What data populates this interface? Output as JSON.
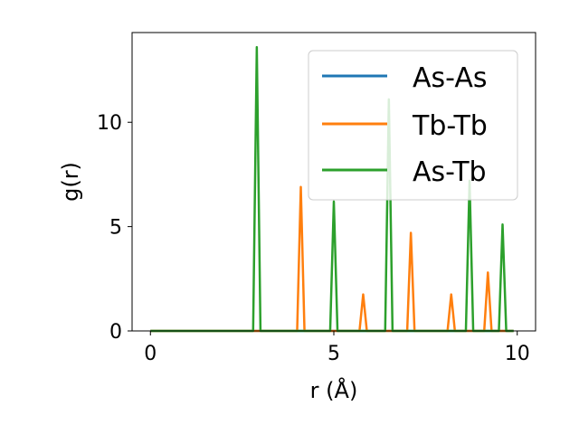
{
  "chart_data": {
    "type": "line",
    "xlabel": "r (Å)",
    "ylabel": "g(r)",
    "xlim": [
      -0.5,
      10.5
    ],
    "ylim": [
      0,
      14.3
    ],
    "x_ticks": [
      0,
      5,
      10
    ],
    "y_ticks": [
      0,
      5,
      10
    ],
    "x_tick_labels": [
      "0",
      "5",
      "10"
    ],
    "y_tick_labels": [
      "0",
      "5",
      "10"
    ],
    "grid": false,
    "legend_position": "top-right",
    "series": [
      {
        "name": "As-As",
        "color": "#1f77b4",
        "x": [
          0,
          2.8,
          2.9,
          3.0,
          3.1,
          9.9
        ],
        "y": [
          0,
          0,
          0,
          0,
          0,
          0
        ]
      },
      {
        "name": "Tb-Tb",
        "color": "#ff7f0e",
        "x": [
          0,
          4.0,
          4.1,
          4.2,
          5.7,
          5.8,
          5.9,
          7.0,
          7.1,
          7.2,
          8.1,
          8.2,
          8.3,
          9.1,
          9.2,
          9.3,
          9.9
        ],
        "y": [
          0,
          0,
          6.9,
          0,
          0,
          1.75,
          0,
          0,
          4.7,
          0,
          0,
          1.75,
          0,
          0,
          2.8,
          0,
          0
        ]
      },
      {
        "name": "As-Tb",
        "color": "#2ca02c",
        "x": [
          0,
          2.8,
          2.9,
          3.0,
          4.9,
          5.0,
          5.1,
          6.4,
          6.5,
          6.6,
          8.6,
          8.7,
          8.8,
          9.5,
          9.6,
          9.7,
          9.9
        ],
        "y": [
          0,
          0,
          13.6,
          0,
          0,
          6.2,
          0,
          0,
          11.1,
          0,
          0,
          7.2,
          0,
          0,
          5.1,
          0,
          0
        ]
      }
    ]
  }
}
